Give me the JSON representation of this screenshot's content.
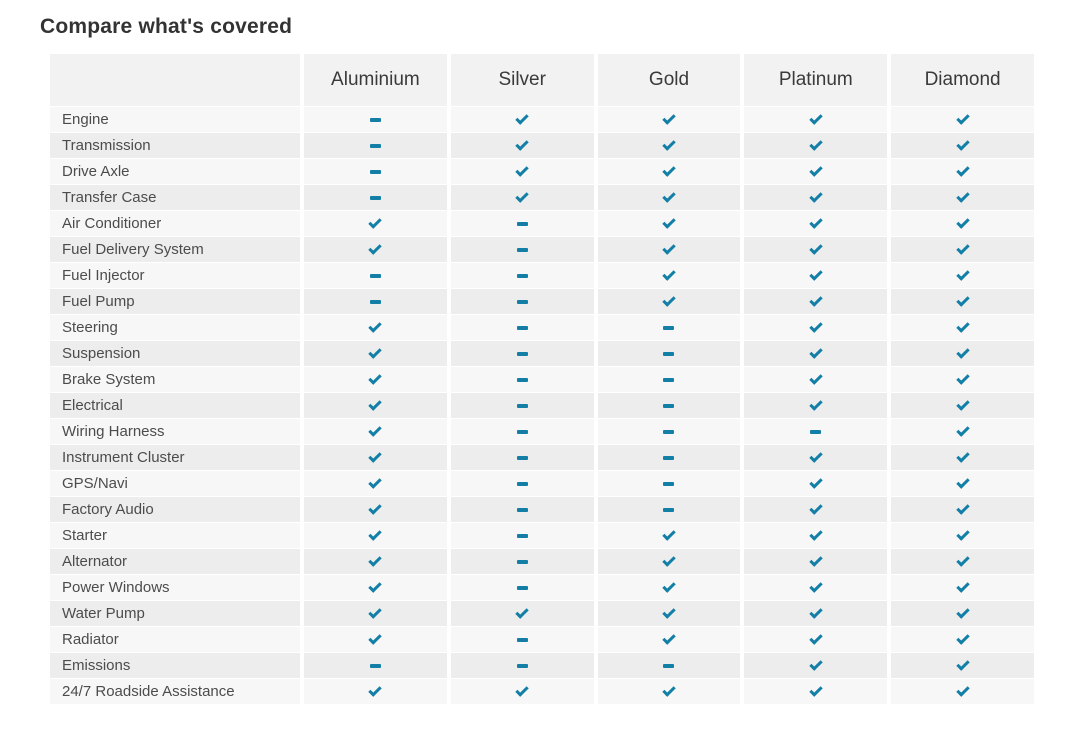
{
  "page": {
    "title": "Compare what's covered"
  },
  "colors": {
    "accent_teal": "#137fa6",
    "header_background": "#f2f2f2",
    "row_odd_background": "#f7f7f7",
    "row_even_background": "#ededed"
  },
  "table": {
    "columns": [
      "Aluminium",
      "Silver",
      "Gold",
      "Platinum",
      "Diamond"
    ],
    "symbols": {
      "covered": "check",
      "not_covered": "dash"
    },
    "rows": [
      {
        "label": "Engine",
        "values": [
          "dash",
          "check",
          "check",
          "check",
          "check"
        ]
      },
      {
        "label": "Transmission",
        "values": [
          "dash",
          "check",
          "check",
          "check",
          "check"
        ]
      },
      {
        "label": "Drive Axle",
        "values": [
          "dash",
          "check",
          "check",
          "check",
          "check"
        ]
      },
      {
        "label": "Transfer Case",
        "values": [
          "dash",
          "check",
          "check",
          "check",
          "check"
        ]
      },
      {
        "label": "Air Conditioner",
        "values": [
          "check",
          "dash",
          "check",
          "check",
          "check"
        ]
      },
      {
        "label": "Fuel Delivery System",
        "values": [
          "check",
          "dash",
          "check",
          "check",
          "check"
        ]
      },
      {
        "label": "Fuel Injector",
        "values": [
          "dash",
          "dash",
          "check",
          "check",
          "check"
        ]
      },
      {
        "label": "Fuel Pump",
        "values": [
          "dash",
          "dash",
          "check",
          "check",
          "check"
        ]
      },
      {
        "label": "Steering",
        "values": [
          "check",
          "dash",
          "dash",
          "check",
          "check"
        ]
      },
      {
        "label": "Suspension",
        "values": [
          "check",
          "dash",
          "dash",
          "check",
          "check"
        ]
      },
      {
        "label": "Brake System",
        "values": [
          "check",
          "dash",
          "dash",
          "check",
          "check"
        ]
      },
      {
        "label": "Electrical",
        "values": [
          "check",
          "dash",
          "dash",
          "check",
          "check"
        ]
      },
      {
        "label": "Wiring Harness",
        "values": [
          "check",
          "dash",
          "dash",
          "dash",
          "check"
        ]
      },
      {
        "label": "Instrument Cluster",
        "values": [
          "check",
          "dash",
          "dash",
          "check",
          "check"
        ]
      },
      {
        "label": "GPS/Navi",
        "values": [
          "check",
          "dash",
          "dash",
          "check",
          "check"
        ]
      },
      {
        "label": "Factory Audio",
        "values": [
          "check",
          "dash",
          "dash",
          "check",
          "check"
        ]
      },
      {
        "label": "Starter",
        "values": [
          "check",
          "dash",
          "check",
          "check",
          "check"
        ]
      },
      {
        "label": "Alternator",
        "values": [
          "check",
          "dash",
          "check",
          "check",
          "check"
        ]
      },
      {
        "label": "Power Windows",
        "values": [
          "check",
          "dash",
          "check",
          "check",
          "check"
        ]
      },
      {
        "label": "Water Pump",
        "values": [
          "check",
          "check",
          "check",
          "check",
          "check"
        ]
      },
      {
        "label": "Radiator",
        "values": [
          "check",
          "dash",
          "check",
          "check",
          "check"
        ]
      },
      {
        "label": "Emissions",
        "values": [
          "dash",
          "dash",
          "dash",
          "check",
          "check"
        ]
      },
      {
        "label": "24/7 Roadside Assistance",
        "values": [
          "check",
          "check",
          "check",
          "check",
          "check"
        ]
      }
    ]
  }
}
